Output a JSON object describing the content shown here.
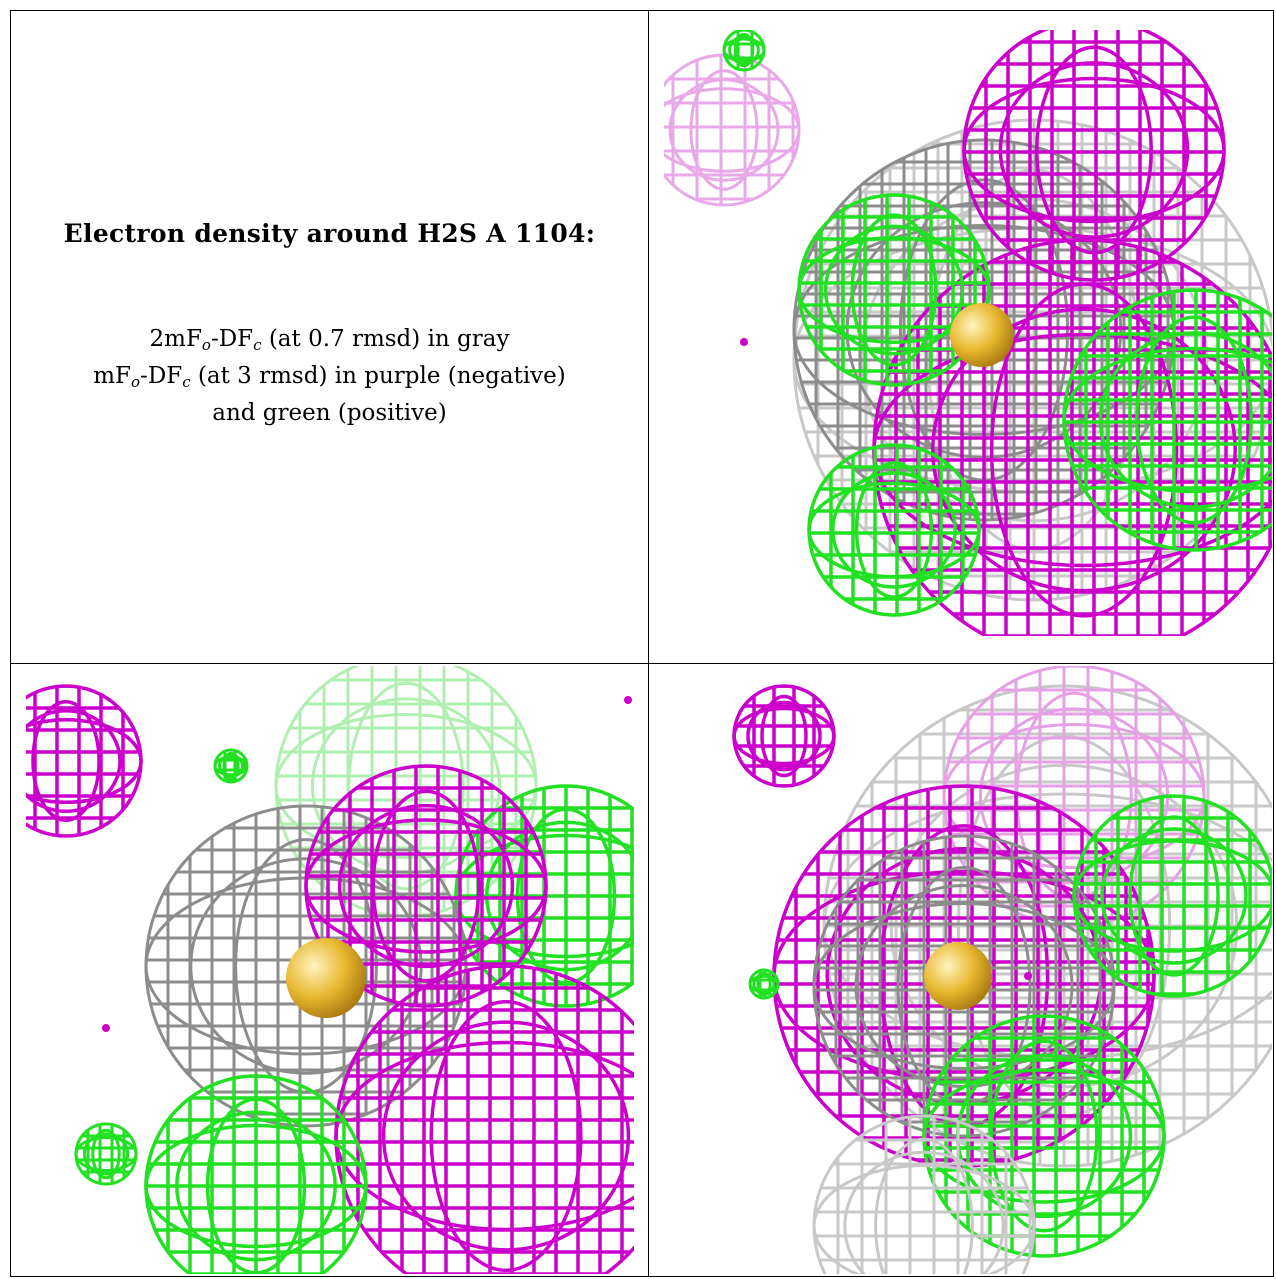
{
  "caption": {
    "title": "Electron density around H2S A 1104:",
    "line1": {
      "a": "2mF",
      "s1": "o",
      "b": "-DF",
      "s2": "c",
      "c": " (at 0.7 rmsd) in gray"
    },
    "line2": {
      "a": "mF",
      "s1": "o",
      "b": "-DF",
      "s2": "c",
      "c": " (at 3 rmsd) in purple (negative)"
    },
    "line3": "and green (positive)"
  },
  "colors": {
    "gray_mesh": "#8c8c8c",
    "light_gray_mesh": "#c8c8c8",
    "purple_mesh": "#cc00cc",
    "light_purple_mesh": "#e6a0e6",
    "green_mesh": "#22e022",
    "light_green_mesh": "#a8eea8",
    "atom": "#e8b830"
  },
  "views": [
    {
      "label": "view-top-right",
      "atom": "H2S sulfur"
    },
    {
      "label": "view-bottom-left",
      "atom": "H2S sulfur"
    },
    {
      "label": "view-bottom-right",
      "atom": "H2S sulfur"
    }
  ]
}
